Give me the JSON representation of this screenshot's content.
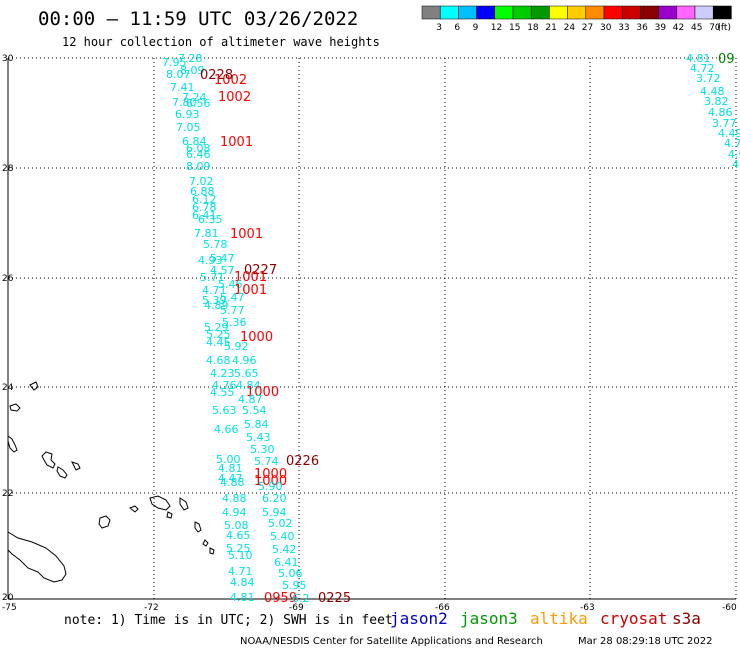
{
  "header": {
    "title": "00:00 — 11:59 UTC 03/26/2022",
    "subtitle": "12 hour collection of altimeter wave heights"
  },
  "legend": {
    "colors": [
      "#808080",
      "#00ffff",
      "#00bfff",
      "#0000ff",
      "#00ff00",
      "#00cc00",
      "#009900",
      "#ffff00",
      "#ffcc00",
      "#ff8c00",
      "#ff0000",
      "#cc0000",
      "#8b0000",
      "#9900cc",
      "#ff66ff",
      "#ccccff",
      "#000000"
    ],
    "labels": [
      "3",
      "6",
      "9",
      "12",
      "15",
      "18",
      "21",
      "24",
      "27",
      "30",
      "33",
      "36",
      "39",
      "42",
      "45",
      "70"
    ],
    "unit": "(ft)"
  },
  "axes": {
    "lat_labels": [
      "30",
      "28",
      "26",
      "24",
      "22",
      "20"
    ],
    "lon_labels": [
      "-75",
      "-72",
      "-69",
      "-66",
      "-63",
      "-60"
    ]
  },
  "colors": {
    "cyan": "#00e0e0",
    "red": "#ff0000",
    "darkred": "#8b0000",
    "green": "#008000"
  },
  "track_values": [
    {
      "t": "7.28",
      "c": "cyan"
    },
    {
      "t": "7.95",
      "c": "cyan"
    },
    {
      "t": "8.07",
      "c": "cyan"
    },
    {
      "t": "8.09",
      "c": "cyan"
    },
    {
      "t": "0228",
      "c": "darkred"
    },
    {
      "t": "1002",
      "c": "red"
    },
    {
      "t": "7.41",
      "c": "cyan"
    },
    {
      "t": "7.24",
      "c": "cyan"
    },
    {
      "t": "7.80",
      "c": "cyan"
    },
    {
      "t": "6.56",
      "c": "cyan"
    },
    {
      "t": "1002",
      "c": "red"
    },
    {
      "t": "6.93",
      "c": "cyan"
    },
    {
      "t": "7.05",
      "c": "cyan"
    },
    {
      "t": "6.84",
      "c": "cyan"
    },
    {
      "t": "1001",
      "c": "red"
    },
    {
      "t": "6.08",
      "c": "cyan"
    },
    {
      "t": "6.46",
      "c": "cyan"
    },
    {
      "t": "8.09",
      "c": "cyan"
    },
    {
      "t": "7.02",
      "c": "cyan"
    },
    {
      "t": "6.88",
      "c": "cyan"
    },
    {
      "t": "6.12",
      "c": "cyan"
    },
    {
      "t": "6.78",
      "c": "cyan"
    },
    {
      "t": "6.41",
      "c": "cyan"
    },
    {
      "t": "6.35",
      "c": "cyan"
    },
    {
      "t": "7.81",
      "c": "cyan"
    },
    {
      "t": "1001",
      "c": "red"
    },
    {
      "t": "5.78",
      "c": "cyan"
    },
    {
      "t": "4.93",
      "c": "cyan"
    },
    {
      "t": "5.47",
      "c": "cyan"
    },
    {
      "t": "4.57",
      "c": "cyan"
    },
    {
      "t": "0227",
      "c": "darkred"
    },
    {
      "t": "5.71",
      "c": "cyan"
    },
    {
      "t": "1001",
      "c": "red"
    },
    {
      "t": "4.71",
      "c": "cyan"
    },
    {
      "t": "5.46",
      "c": "cyan"
    },
    {
      "t": "1001",
      "c": "red"
    },
    {
      "t": "5.47",
      "c": "cyan"
    },
    {
      "t": "5.39",
      "c": "cyan"
    },
    {
      "t": "4.89",
      "c": "cyan"
    },
    {
      "t": "5.77",
      "c": "cyan"
    },
    {
      "t": "5.36",
      "c": "cyan"
    },
    {
      "t": "5.29",
      "c": "cyan"
    },
    {
      "t": "5.25",
      "c": "cyan"
    },
    {
      "t": "1000",
      "c": "red"
    },
    {
      "t": "4.45",
      "c": "cyan"
    },
    {
      "t": "5.92",
      "c": "cyan"
    },
    {
      "t": "4.68",
      "c": "cyan"
    },
    {
      "t": "4.96",
      "c": "cyan"
    },
    {
      "t": "4.23",
      "c": "cyan"
    },
    {
      "t": "5.65",
      "c": "cyan"
    },
    {
      "t": "4.76",
      "c": "cyan"
    },
    {
      "t": "4.84",
      "c": "cyan"
    },
    {
      "t": "4.55",
      "c": "cyan"
    },
    {
      "t": "1000",
      "c": "red"
    },
    {
      "t": "4.87",
      "c": "cyan"
    },
    {
      "t": "5.63",
      "c": "cyan"
    },
    {
      "t": "5.54",
      "c": "cyan"
    },
    {
      "t": "5.84",
      "c": "cyan"
    },
    {
      "t": "4.66",
      "c": "cyan"
    },
    {
      "t": "5.43",
      "c": "cyan"
    },
    {
      "t": "5.30",
      "c": "cyan"
    },
    {
      "t": "5.00",
      "c": "cyan"
    },
    {
      "t": "5.74",
      "c": "cyan"
    },
    {
      "t": "0226",
      "c": "darkred"
    },
    {
      "t": "4.81",
      "c": "cyan"
    },
    {
      "t": "4.47",
      "c": "cyan"
    },
    {
      "t": "1000",
      "c": "red"
    },
    {
      "t": "4.88",
      "c": "cyan"
    },
    {
      "t": "1000",
      "c": "red"
    },
    {
      "t": "5.90",
      "c": "cyan"
    },
    {
      "t": "4.88",
      "c": "cyan"
    },
    {
      "t": "6.20",
      "c": "cyan"
    },
    {
      "t": "4.94",
      "c": "cyan"
    },
    {
      "t": "5.94",
      "c": "cyan"
    },
    {
      "t": "5.08",
      "c": "cyan"
    },
    {
      "t": "5.02",
      "c": "cyan"
    },
    {
      "t": "4.65",
      "c": "cyan"
    },
    {
      "t": "5.40",
      "c": "cyan"
    },
    {
      "t": "5.25",
      "c": "cyan"
    },
    {
      "t": "5.42",
      "c": "cyan"
    },
    {
      "t": "5.10",
      "c": "cyan"
    },
    {
      "t": "6.41",
      "c": "cyan"
    },
    {
      "t": "4.71",
      "c": "cyan"
    },
    {
      "t": "5.06",
      "c": "cyan"
    },
    {
      "t": "4.84",
      "c": "cyan"
    },
    {
      "t": "5.95",
      "c": "cyan"
    },
    {
      "t": "4.81",
      "c": "cyan"
    },
    {
      "t": "0959",
      "c": "red"
    },
    {
      "t": "6.2",
      "c": "cyan"
    },
    {
      "t": "0225",
      "c": "darkred"
    }
  ],
  "east_track": [
    {
      "t": "4.81",
      "c": "cyan"
    },
    {
      "t": "09",
      "c": "green"
    },
    {
      "t": "4.72",
      "c": "cyan"
    },
    {
      "t": "3.72",
      "c": "cyan"
    },
    {
      "t": "4.48",
      "c": "cyan"
    },
    {
      "t": "3.82",
      "c": "cyan"
    },
    {
      "t": "4.86",
      "c": "cyan"
    },
    {
      "t": "3.77",
      "c": "cyan"
    },
    {
      "t": "4.49",
      "c": "cyan"
    },
    {
      "t": "4.7",
      "c": "cyan"
    },
    {
      "t": "4.9",
      "c": "cyan"
    },
    {
      "t": "4",
      "c": "cyan"
    }
  ],
  "footer": {
    "note": "note: 1) Time is in UTC; 2) SWH is in feet",
    "satellites": [
      {
        "name": "jason2",
        "color": "#0000cc"
      },
      {
        "name": "jason3",
        "color": "#009900"
      },
      {
        "name": "altika",
        "color": "#ff9900"
      },
      {
        "name": "cryosat",
        "color": "#cc0000"
      },
      {
        "name": "s3a",
        "color": "#8b0000"
      }
    ],
    "credit": "NOAA/NESDIS Center for Satellite Applications and Research",
    "timestamp": "Mar 28 08:29:18 UTC 2022"
  }
}
